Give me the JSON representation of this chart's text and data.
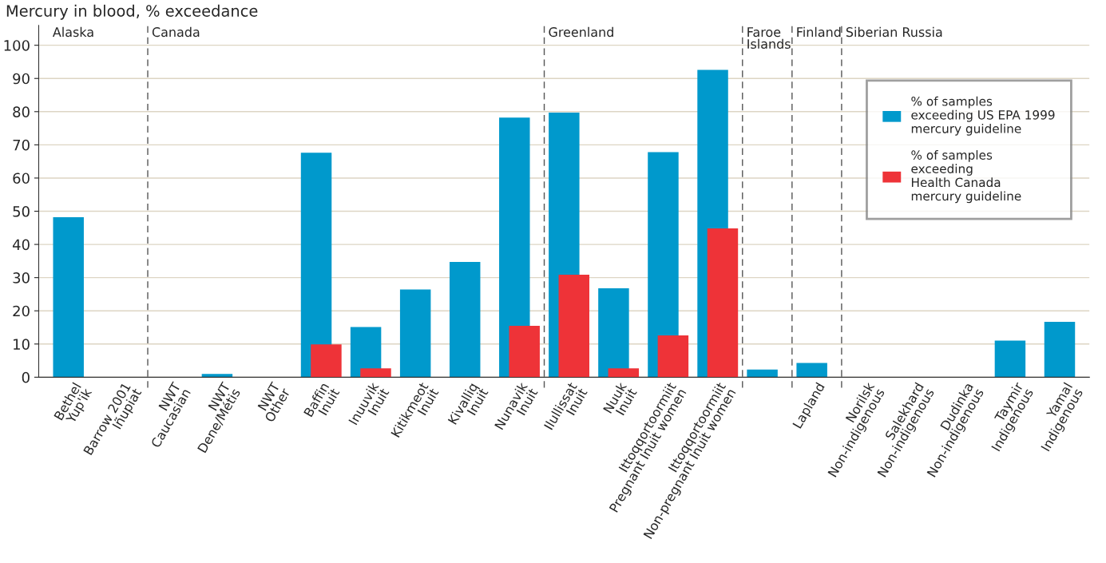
{
  "chart_data": {
    "type": "bar",
    "ylabel": "Mercury in blood, % exceedance",
    "categories": [
      "Bethel\nYup'ik",
      "Barrow 2001\nIñupiat",
      "NWT\nCaucasian",
      "NWT\nDene/Métis",
      "NWT\nOther",
      "Baffin\nInuit",
      "Inuuvik\nInuit",
      "Kitikmeot\nInuit",
      "Kivalliq\nInuit",
      "Nunavik\nInuit",
      "Ilullissat\nInuit",
      "Nuuk\nInuit",
      "Ittoqqortoormiit\nPregnant Inuit women",
      "Ittoqqortoormiit\nNon-pregnant Inuit women",
      null,
      "Lapland",
      "Norilsk\nNon-indigenous",
      "Salekhard\nNon-indigenous",
      "Dudinka\nNon-indigenous",
      "Taymir\nIndigenous",
      "Yamal\nIndigenous"
    ],
    "series": [
      {
        "name": "% of samples\nexceeding US EPA 1999\nmercury guideline",
        "color": "#0099cc",
        "values": [
          48.2,
          0,
          0,
          1,
          0,
          67.6,
          15.1,
          26.4,
          34.7,
          78.2,
          79.7,
          26.8,
          67.8,
          92.6,
          2.3,
          4.3,
          0,
          0,
          0,
          11,
          16.7
        ]
      },
      {
        "name": "% of samples\nexceeding\nHealth Canada\nmercury guideline",
        "color": "#ee3338",
        "values": [
          null,
          null,
          null,
          null,
          null,
          9.9,
          2.7,
          null,
          null,
          15.5,
          30.9,
          2.7,
          12.6,
          44.8,
          null,
          null,
          null,
          null,
          null,
          null,
          null
        ]
      }
    ],
    "annotations": [
      "Alaska",
      "Canada",
      "Greenland",
      "Faroe\nIslands",
      "Finland",
      "Siberian Russia"
    ],
    "ylim": [
      0,
      106
    ],
    "yticks": [
      0,
      10,
      20,
      30,
      40,
      50,
      60,
      70,
      80,
      90,
      100
    ],
    "grid": "y",
    "legend": "top right"
  }
}
